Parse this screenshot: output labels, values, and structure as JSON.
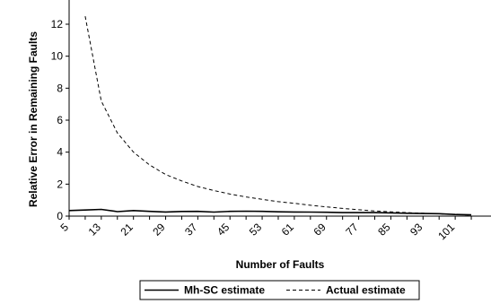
{
  "chart_data": {
    "type": "line",
    "title": "",
    "xlabel": "Number of Faults",
    "ylabel": "Relative Error in Remaining Faults",
    "ylim": [
      0,
      12
    ],
    "y_ticks": [
      "0",
      "2",
      "4",
      "6",
      "8",
      "10",
      "12"
    ],
    "x_ticks": [
      "5",
      "13",
      "21",
      "29",
      "37",
      "45",
      "53",
      "61",
      "69",
      "77",
      "85",
      "93",
      "101"
    ],
    "x": [
      5,
      9,
      13,
      17,
      21,
      25,
      29,
      33,
      37,
      41,
      45,
      49,
      53,
      57,
      61,
      65,
      69,
      73,
      77,
      81,
      85,
      89,
      93,
      97,
      101,
      105
    ],
    "series": [
      {
        "name": "Mh-SC estimate",
        "values": [
          0.35,
          0.38,
          0.42,
          0.28,
          0.35,
          0.3,
          0.26,
          0.29,
          0.3,
          0.25,
          0.3,
          0.31,
          0.3,
          0.27,
          0.26,
          0.25,
          0.24,
          0.22,
          0.22,
          0.22,
          0.2,
          0.18,
          0.16,
          0.15,
          0.1,
          0.08
        ],
        "color": "#000000",
        "dash": "solid"
      },
      {
        "name": "Actual estimate",
        "values": [
          null,
          12.5,
          7.2,
          5.2,
          4.0,
          3.2,
          2.6,
          2.2,
          1.85,
          1.6,
          1.38,
          1.2,
          1.05,
          0.9,
          0.8,
          0.68,
          0.58,
          0.48,
          0.4,
          0.32,
          0.27,
          0.22,
          0.18,
          0.14,
          0.1,
          0.06
        ],
        "color": "#000000",
        "dash": "dashed"
      }
    ],
    "grid": false,
    "legend_position": "bottom"
  }
}
